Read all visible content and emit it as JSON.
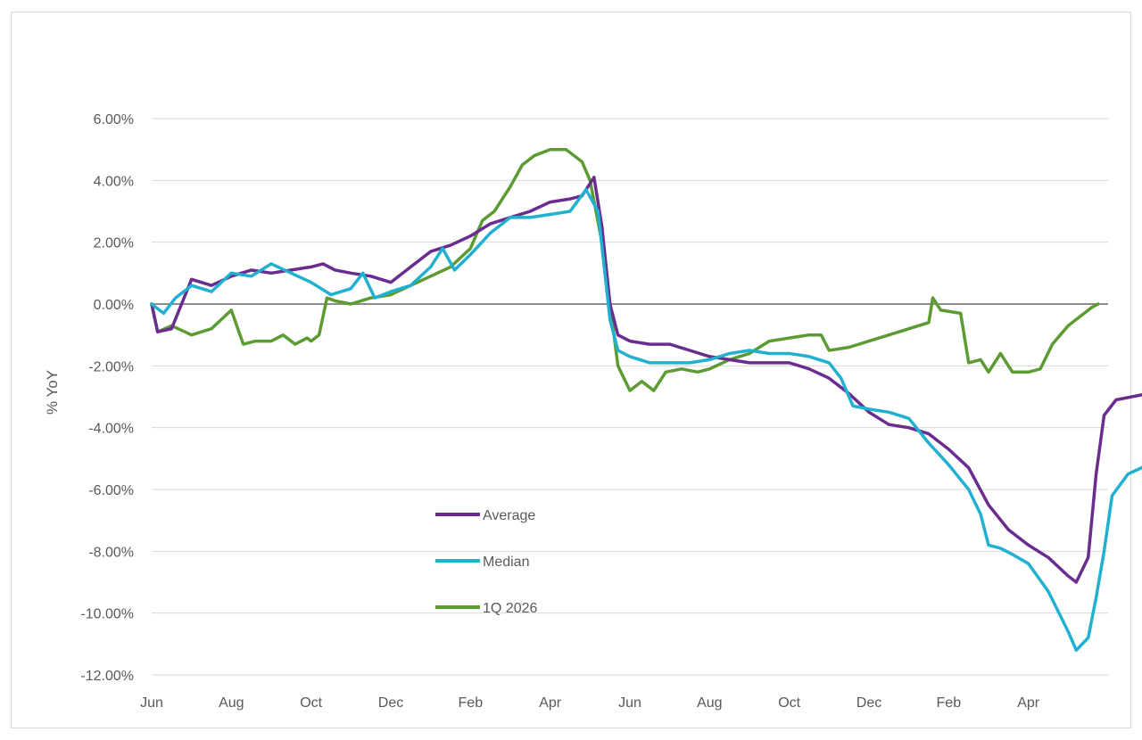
{
  "chart_data": {
    "type": "line",
    "title": "",
    "xlabel": "",
    "ylabel": "% YoY",
    "ylim": [
      -0.12,
      0.06
    ],
    "y_ticks": [
      0.06,
      0.04,
      0.02,
      0.0,
      -0.02,
      -0.04,
      -0.06,
      -0.08,
      -0.1,
      -0.12
    ],
    "y_tick_labels": [
      "6.00%",
      "4.00%",
      "2.00%",
      "0.00%",
      "-2.00%",
      "-4.00%",
      "-6.00%",
      "-8.00%",
      "-10.00%",
      "-12.00%"
    ],
    "x_tick_labels": [
      "Jun",
      "Aug",
      "Oct",
      "Dec",
      "Feb",
      "Apr",
      "Jun",
      "Aug",
      "Oct",
      "Dec",
      "Feb",
      "Apr"
    ],
    "x_range_months": [
      0,
      24
    ],
    "grid": "horizontal",
    "legend_position": "center-bottom",
    "series": [
      {
        "name": "Average",
        "color": "#6a2c8e",
        "points": [
          [
            0,
            0.0
          ],
          [
            0.15,
            -0.009
          ],
          [
            0.5,
            -0.008
          ],
          [
            1.0,
            0.008
          ],
          [
            1.5,
            0.006
          ],
          [
            2.0,
            0.009
          ],
          [
            2.5,
            0.011
          ],
          [
            3.0,
            0.01
          ],
          [
            3.5,
            0.011
          ],
          [
            4.0,
            0.012
          ],
          [
            4.3,
            0.013
          ],
          [
            4.6,
            0.011
          ],
          [
            5.0,
            0.01
          ],
          [
            5.5,
            0.009
          ],
          [
            6.0,
            0.007
          ],
          [
            6.5,
            0.012
          ],
          [
            7.0,
            0.017
          ],
          [
            7.5,
            0.019
          ],
          [
            8.0,
            0.022
          ],
          [
            8.5,
            0.026
          ],
          [
            9.0,
            0.028
          ],
          [
            9.5,
            0.03
          ],
          [
            10.0,
            0.033
          ],
          [
            10.5,
            0.034
          ],
          [
            10.8,
            0.035
          ],
          [
            11.1,
            0.041
          ],
          [
            11.3,
            0.025
          ],
          [
            11.5,
            0.0
          ],
          [
            11.7,
            -0.01
          ],
          [
            12.0,
            -0.012
          ],
          [
            12.5,
            -0.013
          ],
          [
            13.0,
            -0.013
          ],
          [
            13.5,
            -0.015
          ],
          [
            14.0,
            -0.017
          ],
          [
            14.5,
            -0.018
          ],
          [
            15.0,
            -0.019
          ],
          [
            15.5,
            -0.019
          ],
          [
            16.0,
            -0.019
          ],
          [
            16.5,
            -0.021
          ],
          [
            17.0,
            -0.024
          ],
          [
            17.5,
            -0.029
          ],
          [
            18.0,
            -0.035
          ],
          [
            18.5,
            -0.039
          ],
          [
            19.0,
            -0.04
          ],
          [
            19.5,
            -0.042
          ],
          [
            20.0,
            -0.047
          ],
          [
            20.5,
            -0.053
          ],
          [
            21.0,
            -0.065
          ],
          [
            21.5,
            -0.073
          ],
          [
            22.0,
            -0.078
          ],
          [
            22.5,
            -0.082
          ],
          [
            23.0,
            -0.088
          ],
          [
            23.2,
            -0.09
          ],
          [
            23.5,
            -0.082
          ],
          [
            23.7,
            -0.055
          ],
          [
            23.9,
            -0.036
          ],
          [
            24.2,
            -0.031
          ],
          [
            24.6,
            -0.03
          ],
          [
            25.0,
            -0.029
          ]
        ]
      },
      {
        "name": "Median",
        "color": "#1fb1cf",
        "points": [
          [
            0,
            0.0
          ],
          [
            0.3,
            -0.003
          ],
          [
            0.6,
            0.002
          ],
          [
            1.0,
            0.006
          ],
          [
            1.5,
            0.004
          ],
          [
            2.0,
            0.01
          ],
          [
            2.5,
            0.009
          ],
          [
            3.0,
            0.013
          ],
          [
            3.5,
            0.01
          ],
          [
            4.0,
            0.007
          ],
          [
            4.5,
            0.003
          ],
          [
            5.0,
            0.005
          ],
          [
            5.3,
            0.01
          ],
          [
            5.6,
            0.002
          ],
          [
            6.0,
            0.004
          ],
          [
            6.5,
            0.006
          ],
          [
            7.0,
            0.012
          ],
          [
            7.3,
            0.018
          ],
          [
            7.6,
            0.011
          ],
          [
            8.0,
            0.016
          ],
          [
            8.5,
            0.023
          ],
          [
            9.0,
            0.028
          ],
          [
            9.5,
            0.028
          ],
          [
            10.0,
            0.029
          ],
          [
            10.5,
            0.03
          ],
          [
            10.9,
            0.037
          ],
          [
            11.2,
            0.03
          ],
          [
            11.5,
            -0.005
          ],
          [
            11.7,
            -0.015
          ],
          [
            12.0,
            -0.017
          ],
          [
            12.5,
            -0.019
          ],
          [
            13.0,
            -0.019
          ],
          [
            13.5,
            -0.019
          ],
          [
            14.0,
            -0.018
          ],
          [
            14.5,
            -0.016
          ],
          [
            15.0,
            -0.015
          ],
          [
            15.5,
            -0.016
          ],
          [
            16.0,
            -0.016
          ],
          [
            16.5,
            -0.017
          ],
          [
            17.0,
            -0.019
          ],
          [
            17.3,
            -0.024
          ],
          [
            17.6,
            -0.033
          ],
          [
            18.0,
            -0.034
          ],
          [
            18.5,
            -0.035
          ],
          [
            19.0,
            -0.037
          ],
          [
            19.5,
            -0.045
          ],
          [
            20.0,
            -0.052
          ],
          [
            20.5,
            -0.06
          ],
          [
            20.8,
            -0.068
          ],
          [
            21.0,
            -0.078
          ],
          [
            21.3,
            -0.079
          ],
          [
            21.6,
            -0.081
          ],
          [
            22.0,
            -0.084
          ],
          [
            22.5,
            -0.093
          ],
          [
            23.0,
            -0.106
          ],
          [
            23.2,
            -0.112
          ],
          [
            23.5,
            -0.108
          ],
          [
            23.7,
            -0.095
          ],
          [
            23.9,
            -0.08
          ],
          [
            24.1,
            -0.062
          ],
          [
            24.5,
            -0.055
          ],
          [
            25.0,
            -0.052
          ]
        ]
      },
      {
        "name": "1Q 2026",
        "color": "#5b9b32",
        "points": [
          [
            0,
            0.0
          ],
          [
            0.15,
            -0.009
          ],
          [
            0.5,
            -0.007
          ],
          [
            1.0,
            -0.01
          ],
          [
            1.5,
            -0.008
          ],
          [
            2.0,
            -0.002
          ],
          [
            2.3,
            -0.013
          ],
          [
            2.6,
            -0.012
          ],
          [
            3.0,
            -0.012
          ],
          [
            3.3,
            -0.01
          ],
          [
            3.6,
            -0.013
          ],
          [
            3.9,
            -0.011
          ],
          [
            4.0,
            -0.012
          ],
          [
            4.2,
            -0.01
          ],
          [
            4.4,
            0.002
          ],
          [
            4.6,
            0.001
          ],
          [
            5.0,
            0.0
          ],
          [
            5.5,
            0.002
          ],
          [
            6.0,
            0.003
          ],
          [
            6.5,
            0.006
          ],
          [
            7.0,
            0.009
          ],
          [
            7.5,
            0.012
          ],
          [
            8.0,
            0.018
          ],
          [
            8.3,
            0.027
          ],
          [
            8.6,
            0.03
          ],
          [
            9.0,
            0.038
          ],
          [
            9.3,
            0.045
          ],
          [
            9.6,
            0.048
          ],
          [
            10.0,
            0.05
          ],
          [
            10.4,
            0.05
          ],
          [
            10.8,
            0.046
          ],
          [
            11.0,
            0.04
          ],
          [
            11.3,
            0.02
          ],
          [
            11.5,
            0.0
          ],
          [
            11.7,
            -0.02
          ],
          [
            12.0,
            -0.028
          ],
          [
            12.3,
            -0.025
          ],
          [
            12.6,
            -0.028
          ],
          [
            12.9,
            -0.022
          ],
          [
            13.3,
            -0.021
          ],
          [
            13.7,
            -0.022
          ],
          [
            14.0,
            -0.021
          ],
          [
            14.5,
            -0.018
          ],
          [
            15.0,
            -0.016
          ],
          [
            15.5,
            -0.012
          ],
          [
            16.0,
            -0.011
          ],
          [
            16.5,
            -0.01
          ],
          [
            16.8,
            -0.01
          ],
          [
            17.0,
            -0.015
          ],
          [
            17.5,
            -0.014
          ],
          [
            18.0,
            -0.012
          ],
          [
            18.5,
            -0.01
          ],
          [
            19.0,
            -0.008
          ],
          [
            19.5,
            -0.006
          ],
          [
            19.6,
            0.002
          ],
          [
            19.8,
            -0.002
          ],
          [
            20.3,
            -0.003
          ],
          [
            20.5,
            -0.019
          ],
          [
            20.8,
            -0.018
          ],
          [
            21.0,
            -0.022
          ],
          [
            21.3,
            -0.016
          ],
          [
            21.6,
            -0.022
          ],
          [
            22.0,
            -0.022
          ],
          [
            22.3,
            -0.021
          ],
          [
            22.6,
            -0.013
          ],
          [
            23.0,
            -0.007
          ],
          [
            23.3,
            -0.004
          ],
          [
            23.6,
            -0.001
          ],
          [
            23.75,
            0.0
          ]
        ]
      }
    ]
  }
}
